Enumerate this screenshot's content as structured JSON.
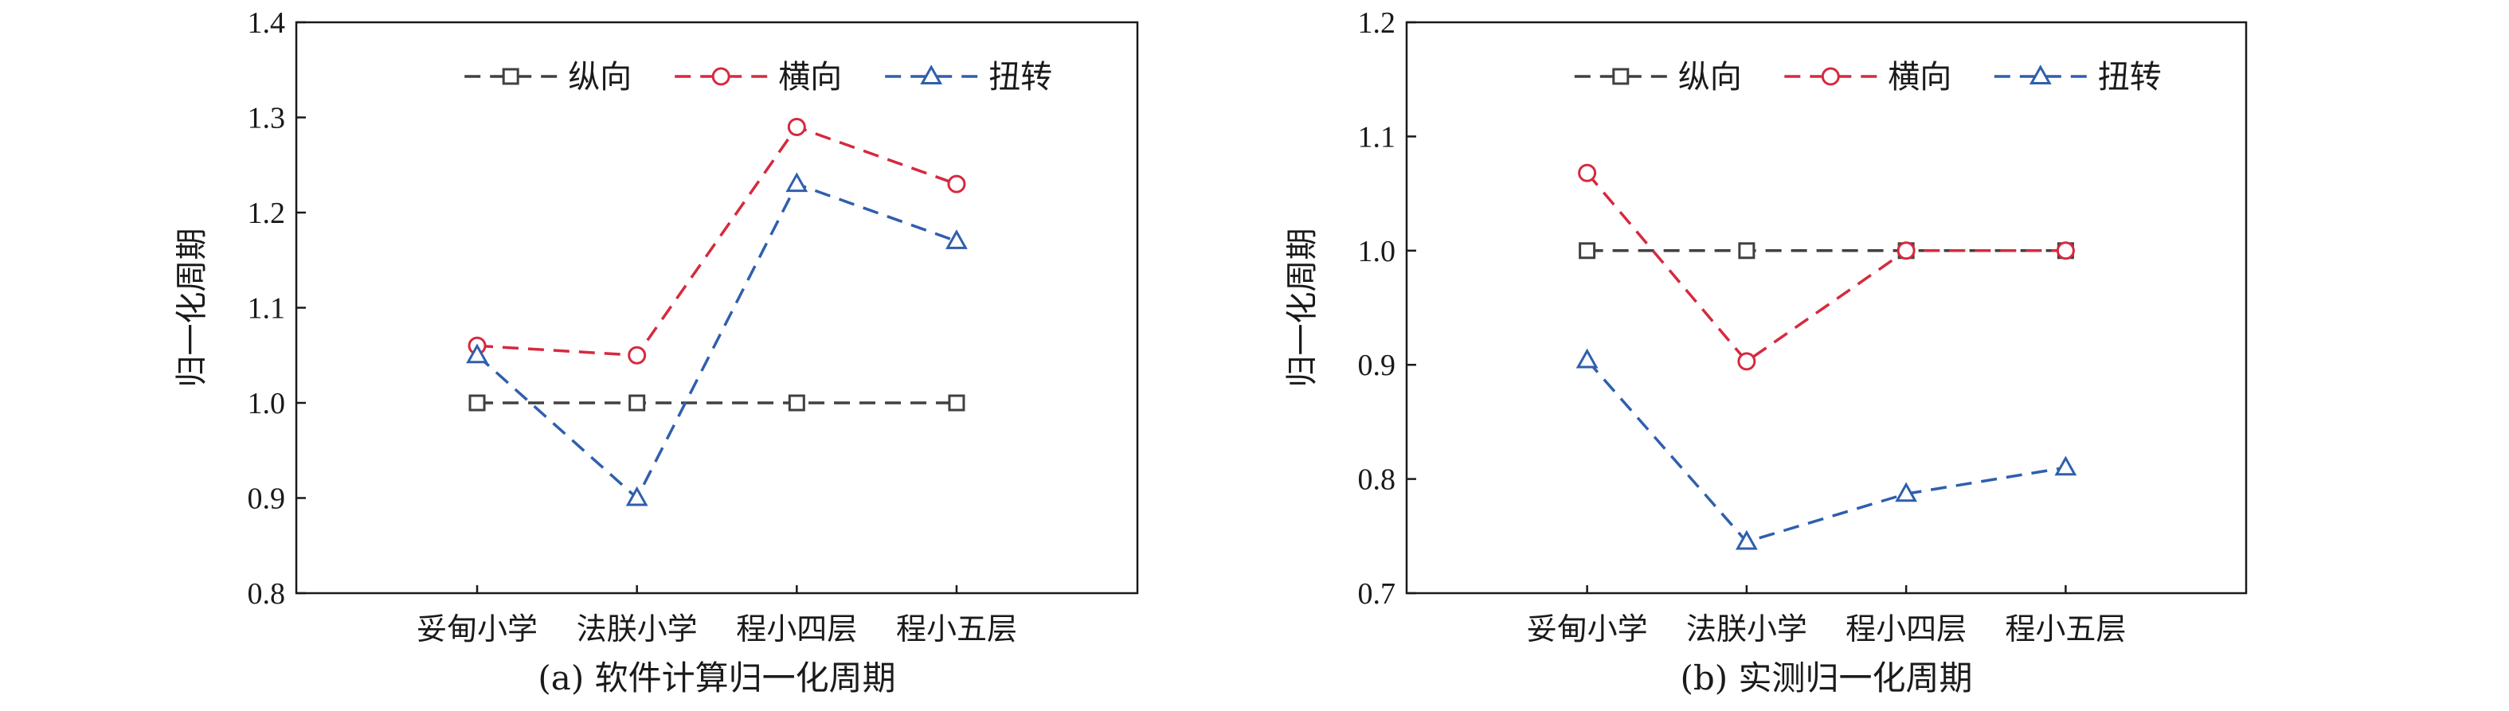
{
  "chart_data": [
    {
      "type": "line",
      "title": "(a) 软件计算归一化周期",
      "ylabel": "归一化周期",
      "xlabel": "",
      "categories": [
        "妥甸小学",
        "法朕小学",
        "程小四层",
        "程小五层"
      ],
      "ylim": [
        0.8,
        1.4
      ],
      "yticks": [
        "0.8",
        "0.9",
        "1.0",
        "1.1",
        "1.2",
        "1.3",
        "1.4"
      ],
      "legend_position": "top",
      "series": [
        {
          "name": "纵向",
          "values": [
            1.0,
            1.0,
            1.0,
            1.0
          ],
          "color": "#404040",
          "marker": "square"
        },
        {
          "name": "横向",
          "values": [
            1.06,
            1.05,
            1.29,
            1.23
          ],
          "color": "#d6293e",
          "marker": "circle"
        },
        {
          "name": "扭转",
          "values": [
            1.05,
            0.9,
            1.23,
            1.17
          ],
          "color": "#2f5fad",
          "marker": "triangle"
        }
      ]
    },
    {
      "type": "line",
      "title": "(b) 实测归一化周期",
      "ylabel": "归一化周期",
      "xlabel": "",
      "categories": [
        "妥甸小学",
        "法朕小学",
        "程小四层",
        "程小五层"
      ],
      "ylim": [
        0.7,
        1.2
      ],
      "yticks": [
        "0.7",
        "0.8",
        "0.9",
        "1.0",
        "1.1",
        "1.2"
      ],
      "legend_position": "top",
      "series": [
        {
          "name": "纵向",
          "values": [
            1.0,
            1.0,
            1.0,
            1.0
          ],
          "color": "#404040",
          "marker": "square"
        },
        {
          "name": "横向",
          "values": [
            1.068,
            0.903,
            1.0,
            1.0
          ],
          "color": "#d6293e",
          "marker": "circle"
        },
        {
          "name": "扭转",
          "values": [
            0.904,
            0.745,
            0.787,
            0.81
          ],
          "color": "#2f5fad",
          "marker": "triangle"
        }
      ]
    }
  ]
}
